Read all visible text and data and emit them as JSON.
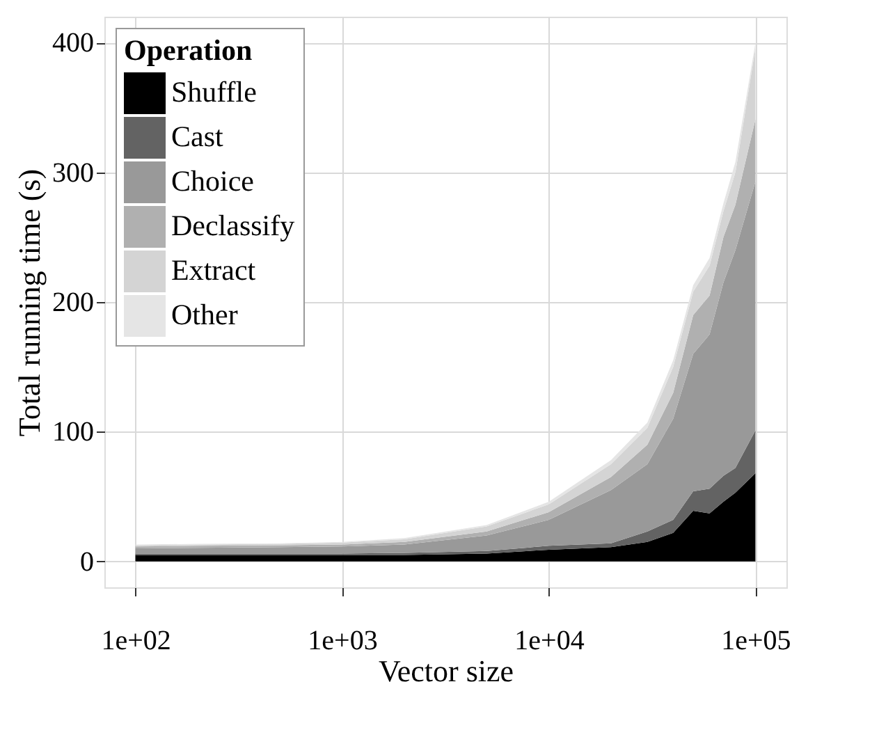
{
  "chart_data": {
    "type": "area",
    "stacked": true,
    "xlabel": "Vector size",
    "ylabel": "Total running time (s)",
    "legend_title": "Operation",
    "legend": "top left",
    "grid": true,
    "log": "x",
    "x": [
      100,
      200,
      500,
      1000,
      2000,
      5000,
      10000,
      20000,
      30000,
      40000,
      50000,
      60000,
      70000,
      80000,
      100000
    ],
    "xlim": [
      70.8,
      141254
    ],
    "ylim": [
      -20,
      420
    ],
    "xticks": [
      {
        "value": 100,
        "label": "1e+02"
      },
      {
        "value": 1000,
        "label": "1e+03"
      },
      {
        "value": 10000,
        "label": "1e+04"
      },
      {
        "value": 100000,
        "label": "1e+05"
      }
    ],
    "yticks": [
      0,
      100,
      200,
      300,
      400
    ],
    "series": [
      {
        "name": "Shuffle",
        "color": "#000000",
        "values": [
          5,
          5,
          5,
          5,
          5,
          6,
          9,
          11,
          15,
          22,
          39,
          37,
          46,
          53,
          68
        ]
      },
      {
        "name": "Cast",
        "color": "#636363",
        "values": [
          1,
          1,
          1,
          1,
          1.5,
          2,
          3,
          3,
          8,
          10,
          15,
          19,
          20,
          19,
          33
        ]
      },
      {
        "name": "Choice",
        "color": "#999999",
        "values": [
          4,
          4.5,
          5,
          5.5,
          6.5,
          12,
          20,
          41,
          52,
          78,
          106,
          119,
          149,
          168,
          192
        ]
      },
      {
        "name": "Declassify",
        "color": "#b0b0b0",
        "values": [
          1.5,
          1.5,
          1.5,
          1.5,
          2,
          3,
          6,
          10,
          15,
          20,
          30,
          30,
          35,
          35,
          48
        ]
      },
      {
        "name": "Extract",
        "color": "#d4d4d4",
        "values": [
          1,
          1,
          1,
          1.5,
          2,
          4,
          6,
          10,
          13,
          20,
          18,
          23,
          20,
          25,
          55
        ]
      },
      {
        "name": "Other",
        "color": "#e5e5e5",
        "values": [
          0.5,
          0.5,
          0.5,
          0.5,
          1,
          1,
          2,
          3,
          4,
          5,
          5,
          6,
          6,
          8,
          4
        ]
      }
    ]
  }
}
